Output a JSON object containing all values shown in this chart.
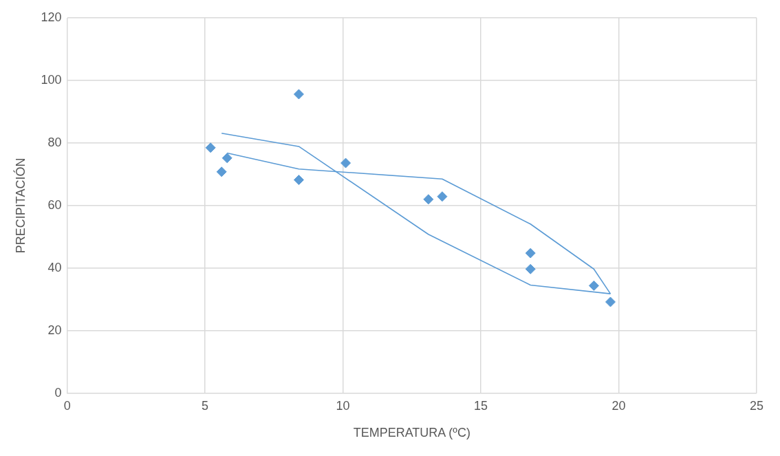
{
  "chart_data": {
    "type": "scatter",
    "xlabel": "TEMPERATURA (ºC)",
    "ylabel": "PRECIPITACIÓN",
    "xlim": [
      0,
      25
    ],
    "xticks": [
      0,
      5,
      10,
      15,
      20,
      25
    ],
    "ylim": [
      0,
      120
    ],
    "yticks": [
      0,
      20,
      40,
      60,
      80,
      100,
      120
    ],
    "grid": true,
    "legend": false,
    "marker": "diamond",
    "series": [
      {
        "type": "scatter",
        "color": "#5b9bd5",
        "x": [
          5.2,
          5.6,
          5.8,
          8.4,
          8.4,
          10.1,
          13.1,
          13.6,
          16.8,
          16.8,
          19.1,
          19.7
        ],
        "values": [
          78.5,
          70.8,
          75.2,
          95.6,
          68.2,
          73.6,
          62.0,
          62.9,
          44.8,
          39.7,
          34.4,
          29.2
        ]
      },
      {
        "type": "line",
        "color": "#5b9bd5",
        "marker": "none",
        "x": [
          5.6,
          8.4,
          13.1,
          16.8,
          19.7
        ],
        "values": [
          83.1,
          78.9,
          50.8,
          34.6,
          31.8
        ]
      },
      {
        "type": "line",
        "color": "#5b9bd5",
        "marker": "none",
        "x": [
          5.8,
          8.4,
          13.6,
          16.8,
          19.1,
          19.7
        ],
        "values": [
          76.8,
          71.7,
          68.5,
          54.1,
          39.7,
          31.8
        ]
      }
    ]
  }
}
